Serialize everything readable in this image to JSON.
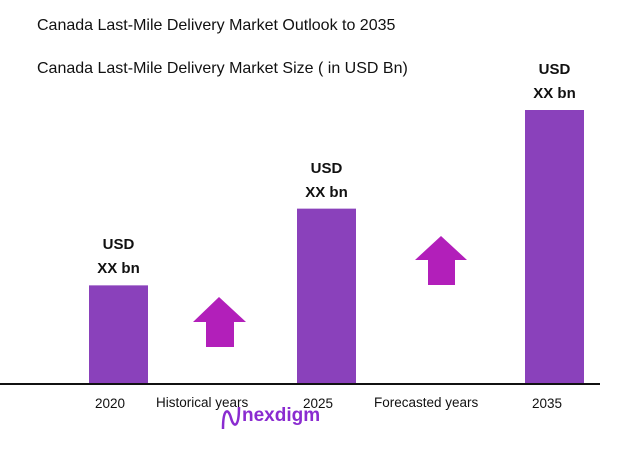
{
  "title": "Canada Last-Mile Delivery Market Outlook to 2035",
  "chart_data": {
    "type": "bar",
    "title": "Canada Last-Mile Delivery Market Size ( in USD Bn)",
    "categories": [
      "2020",
      "2025",
      "2035"
    ],
    "relative_values": [
      36,
      64,
      100
    ],
    "data_labels": [
      [
        "USD",
        "XX bn"
      ],
      [
        "USD",
        "XX bn"
      ],
      [
        "USD",
        "XX bn"
      ]
    ],
    "annotations": [
      "Historical years",
      "Forecasted years"
    ],
    "bar_color": "#8a41bb",
    "arrow_color": "#b21fba",
    "grid": false
  },
  "logo": {
    "text": "nexdigm",
    "color": "#8a2bd0"
  }
}
